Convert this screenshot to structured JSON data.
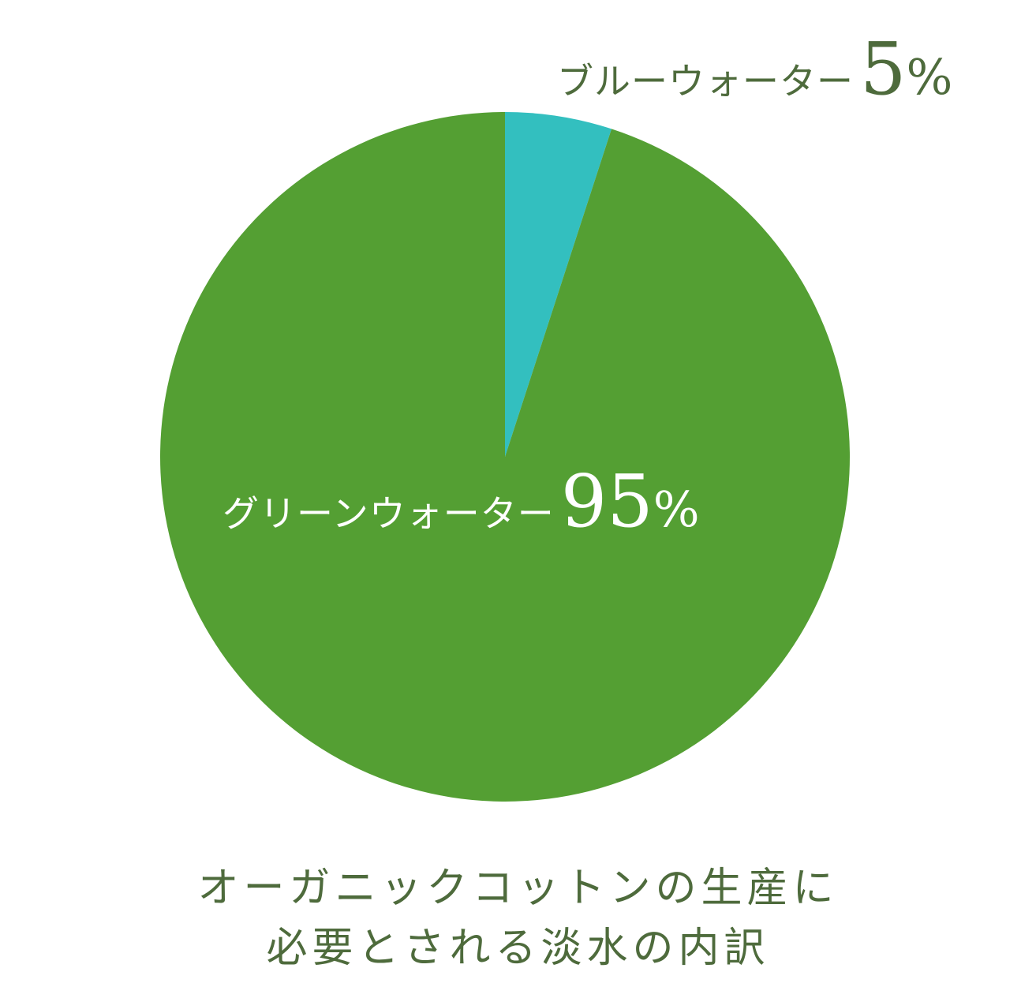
{
  "chart_data": {
    "type": "pie",
    "categories": [
      "ブルーウォーター",
      "グリーンウォーター"
    ],
    "values": [
      5,
      95
    ],
    "colors": [
      "#33bfbf",
      "#549f33"
    ],
    "value_suffix": "%",
    "start_angle": "top",
    "direction": "clockwise"
  },
  "labels": {
    "blue": {
      "category": "ブルーウォーター",
      "value": "5",
      "unit": "%"
    },
    "green": {
      "category": "グリーンウォーター",
      "value": "95",
      "unit": "%"
    }
  },
  "caption": {
    "line1": "オーガニックコットンの生産に",
    "line2": "必要とされる淡水の内訳"
  },
  "colors": {
    "label_text": "#4e6b3c",
    "inner_label_text": "#ffffff"
  }
}
